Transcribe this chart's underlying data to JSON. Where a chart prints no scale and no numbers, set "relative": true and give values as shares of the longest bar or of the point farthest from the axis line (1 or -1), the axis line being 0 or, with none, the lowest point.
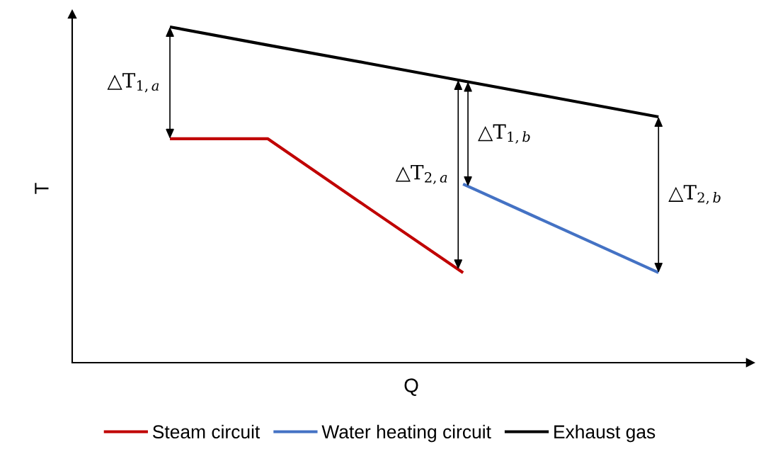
{
  "chart_data": {
    "type": "line",
    "relative": true,
    "xlabel": "Q",
    "ylabel": "T",
    "legend": "bottom",
    "marker": "none",
    "line_style": "solid",
    "categories": [
      null,
      null,
      null,
      null,
      null,
      null
    ],
    "series": [
      {
        "name": "Steam circuit",
        "color": "#c00000",
        "values": [
          0.667,
          0.667,
          0.467,
          0.268,
          null,
          null
        ]
      },
      {
        "name": "Water heating circuit",
        "color": "#4472c4",
        "values": [
          null,
          null,
          null,
          0.532,
          0.4,
          0.268
        ]
      },
      {
        "name": "Exhaust gas",
        "color": "#000000",
        "values": [
          1,
          0.946,
          0.893,
          0.839,
          0.786,
          0.732
        ]
      }
    ],
    "annotations": [
      "△T$_{1,a}$",
      "△T$_{2,a}$",
      "△T$_{1,b}$",
      "△T$_{2,b}$"
    ]
  }
}
